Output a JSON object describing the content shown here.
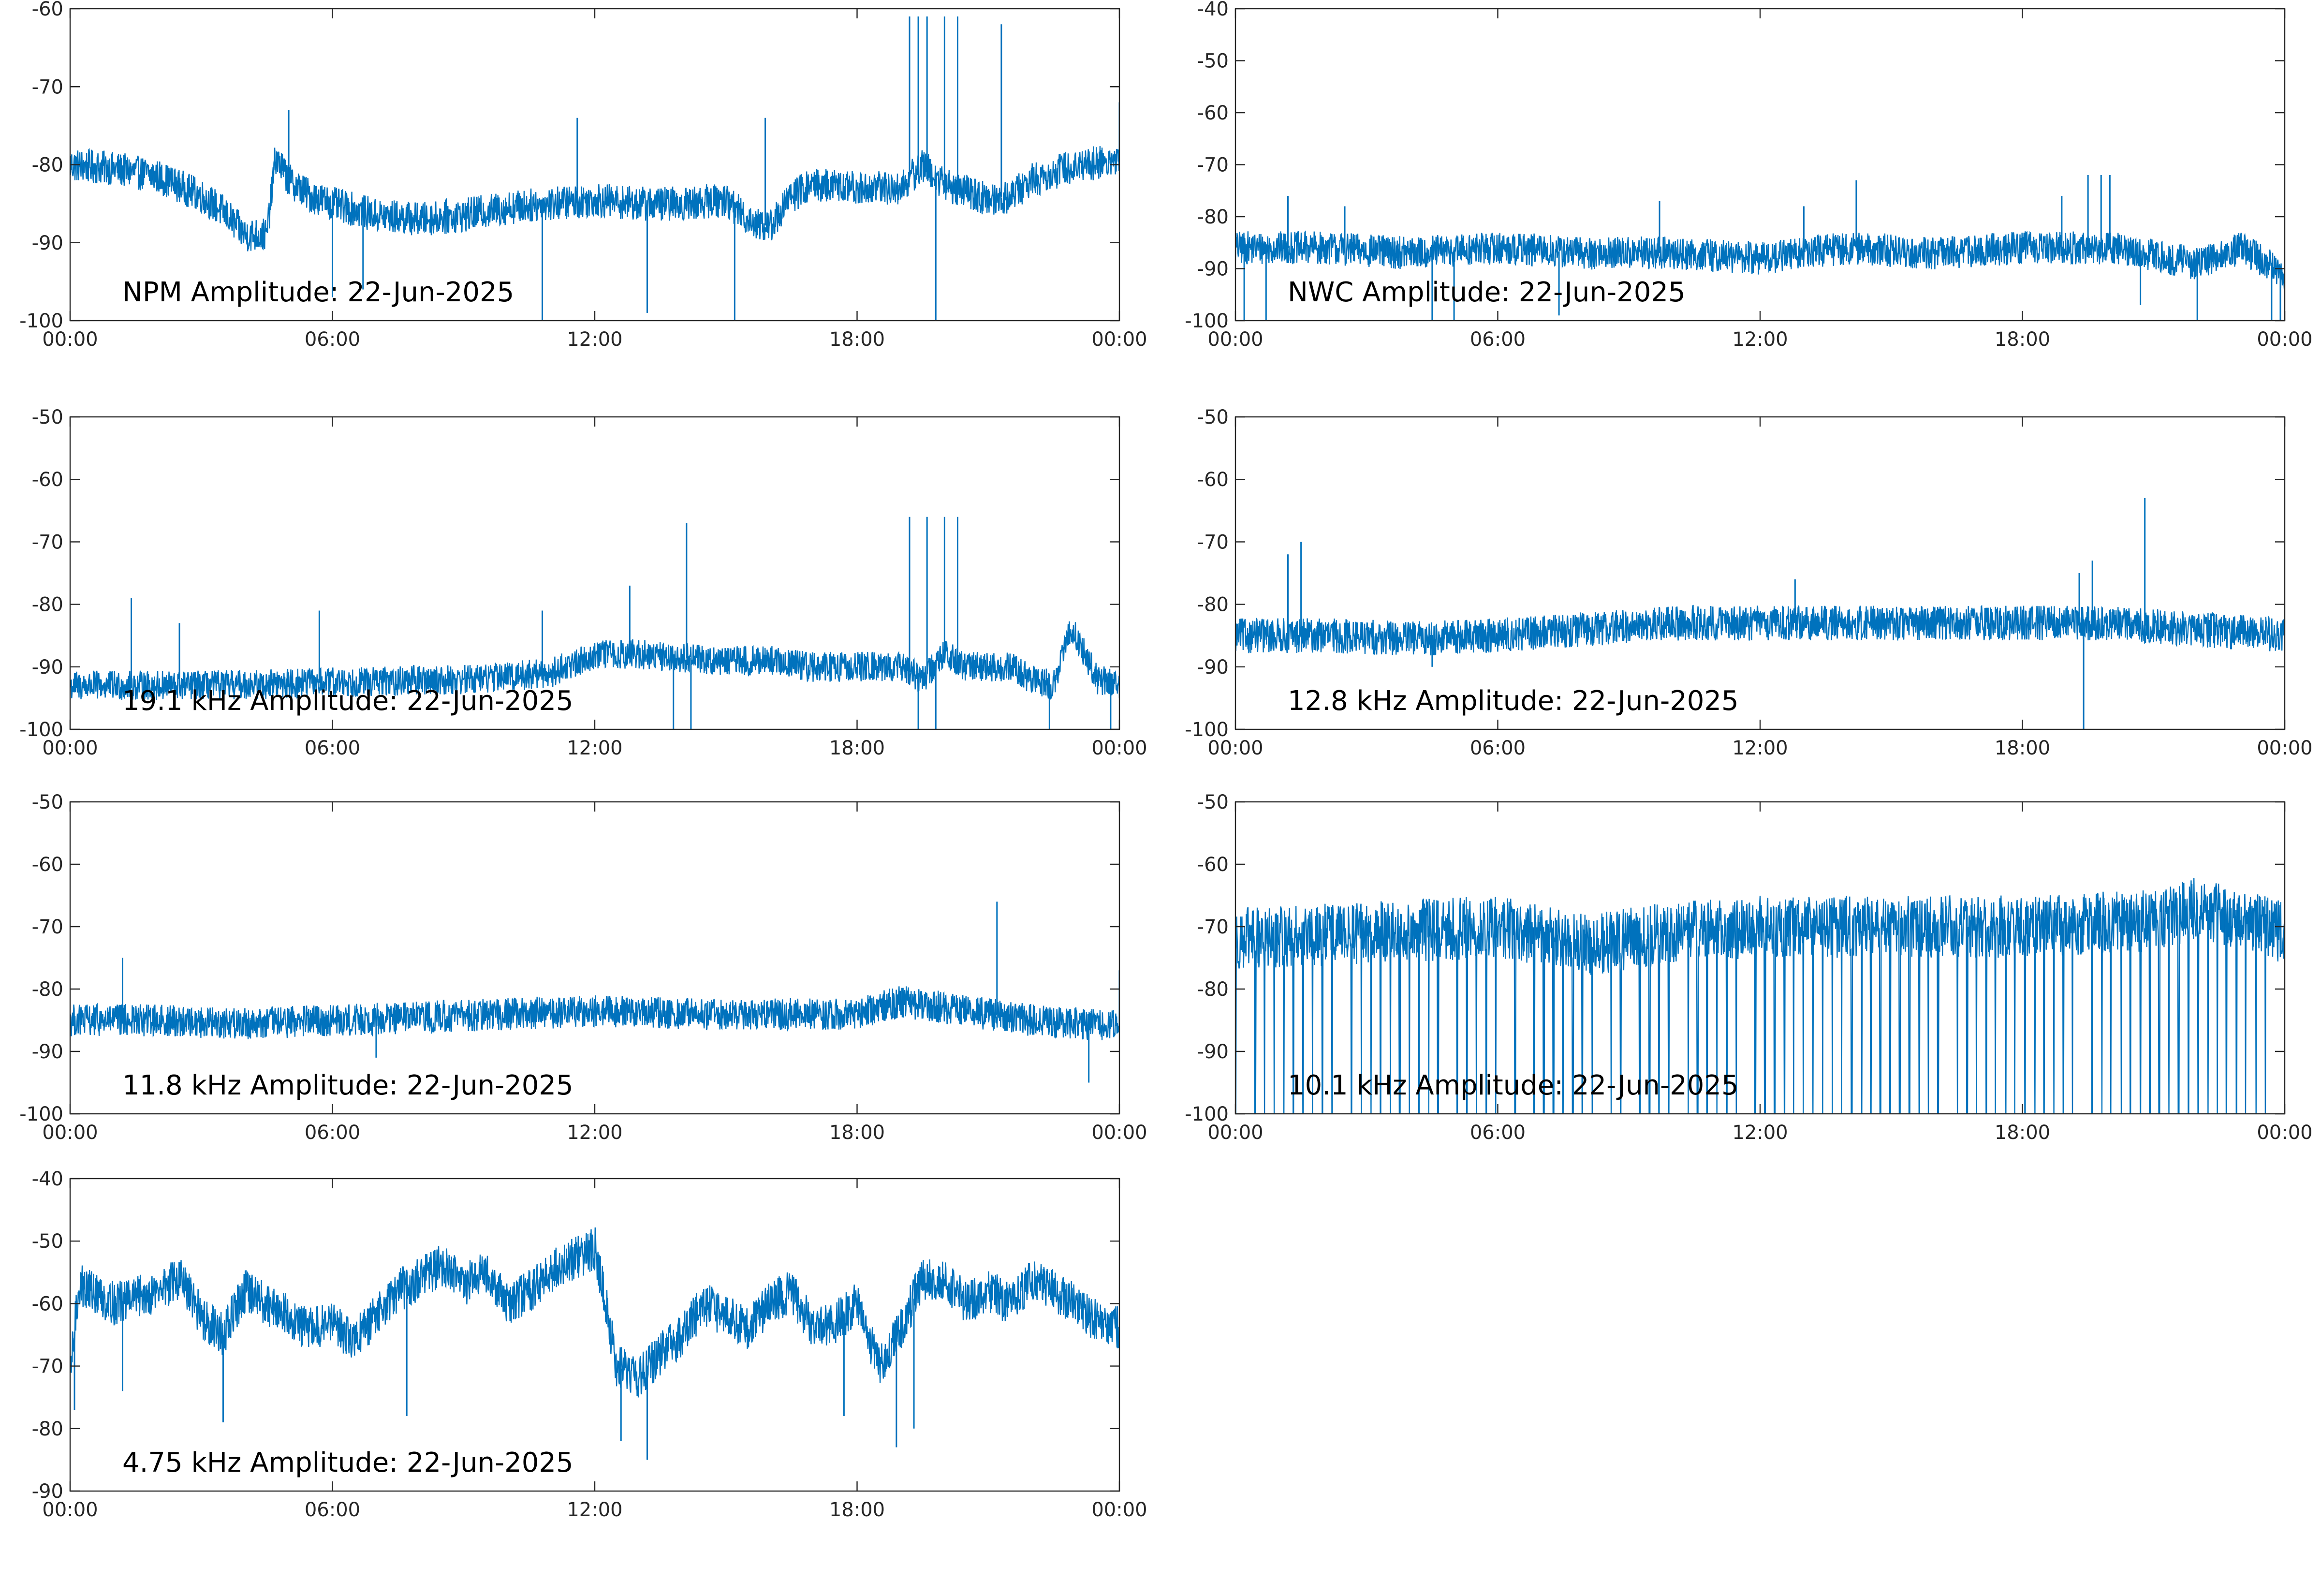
{
  "chart_data": [
    {
      "type": "line",
      "title": "NPM Amplitude: 22-Jun-2025",
      "xticks": [
        "00:00",
        "06:00",
        "12:00",
        "18:00",
        "00:00"
      ],
      "xlim": [
        0,
        24
      ],
      "ylim": [
        -100,
        -60
      ],
      "yticks": [
        -100,
        -90,
        -80,
        -70,
        -60
      ],
      "color": "#0072BD",
      "series": [
        {
          "x": [
            0,
            1,
            2,
            3,
            3.5,
            4,
            4.5,
            4.7,
            5,
            5.5,
            6,
            7,
            8,
            9,
            10,
            11,
            12,
            13,
            14,
            15,
            15.5,
            16,
            16.5,
            17,
            18,
            19,
            19.5,
            20,
            20.5,
            21,
            21.5,
            22,
            23,
            24
          ],
          "values": [
            -80,
            -80.5,
            -81.5,
            -84,
            -86,
            -89,
            -89,
            -79,
            -82,
            -84,
            -85,
            -86.5,
            -87,
            -86.5,
            -85.5,
            -85,
            -84.5,
            -85,
            -85,
            -84.5,
            -87,
            -88,
            -84,
            -82.5,
            -83,
            -83,
            -80,
            -82.5,
            -83.5,
            -84.5,
            -84,
            -82,
            -80,
            -79.5
          ],
          "noise": 2.2,
          "spikes": [
            {
              "x": 5.0,
              "y": -73
            },
            {
              "x": 6.0,
              "y": -97
            },
            {
              "x": 6.7,
              "y": -96
            },
            {
              "x": 10.8,
              "y": -100
            },
            {
              "x": 11.6,
              "y": -74
            },
            {
              "x": 13.2,
              "y": -99
            },
            {
              "x": 15.2,
              "y": -100
            },
            {
              "x": 15.9,
              "y": -74
            },
            {
              "x": 19.2,
              "y": -61
            },
            {
              "x": 19.4,
              "y": -61
            },
            {
              "x": 19.6,
              "y": -61
            },
            {
              "x": 19.8,
              "y": -100
            },
            {
              "x": 20.0,
              "y": -61
            },
            {
              "x": 20.3,
              "y": -61
            },
            {
              "x": 21.3,
              "y": -62
            },
            {
              "x": 24.0,
              "y": -72
            }
          ]
        }
      ]
    },
    {
      "type": "line",
      "title": "NWC Amplitude: 22-Jun-2025",
      "xticks": [
        "00:00",
        "06:00",
        "12:00",
        "18:00",
        "00:00"
      ],
      "xlim": [
        0,
        24
      ],
      "ylim": [
        -100,
        -40
      ],
      "yticks": [
        -100,
        -90,
        -80,
        -70,
        -60,
        -50,
        -40
      ],
      "color": "#0072BD",
      "series": [
        {
          "x": [
            0,
            2,
            4,
            6,
            8,
            10,
            12,
            14,
            16,
            18,
            20,
            22,
            23,
            24
          ],
          "values": [
            -86,
            -86,
            -87,
            -86,
            -87,
            -87,
            -88,
            -86,
            -87,
            -86,
            -86,
            -89,
            -86,
            -91
          ],
          "noise": 3.2,
          "spikes": [
            {
              "x": 0.2,
              "y": -100
            },
            {
              "x": 0.7,
              "y": -100
            },
            {
              "x": 1.2,
              "y": -76
            },
            {
              "x": 2.5,
              "y": -78
            },
            {
              "x": 4.5,
              "y": -100
            },
            {
              "x": 5.0,
              "y": -100
            },
            {
              "x": 7.4,
              "y": -99
            },
            {
              "x": 9.7,
              "y": -77
            },
            {
              "x": 13.0,
              "y": -78
            },
            {
              "x": 14.2,
              "y": -73
            },
            {
              "x": 18.9,
              "y": -76
            },
            {
              "x": 19.5,
              "y": -72
            },
            {
              "x": 19.8,
              "y": -72
            },
            {
              "x": 20.0,
              "y": -72
            },
            {
              "x": 20.7,
              "y": -97
            },
            {
              "x": 22.0,
              "y": -100
            },
            {
              "x": 23.7,
              "y": -100
            },
            {
              "x": 23.9,
              "y": -100
            }
          ]
        }
      ]
    },
    {
      "type": "line",
      "title": "19.1 kHz Amplitude: 22-Jun-2025",
      "xticks": [
        "00:00",
        "06:00",
        "12:00",
        "18:00",
        "00:00"
      ],
      "xlim": [
        0,
        24
      ],
      "ylim": [
        -100,
        -50
      ],
      "yticks": [
        -100,
        -90,
        -80,
        -70,
        -60,
        -50
      ],
      "color": "#0072BD",
      "series": [
        {
          "x": [
            0,
            3,
            6,
            9,
            11,
            12,
            13,
            14,
            15,
            16,
            17,
            18,
            19,
            19.5,
            20,
            20.5,
            21,
            21.5,
            22,
            22.5,
            22.8,
            23,
            23.5,
            24
          ],
          "values": [
            -93,
            -93,
            -92.5,
            -92,
            -91,
            -88,
            -88,
            -88.5,
            -89,
            -89,
            -90,
            -90,
            -90,
            -92,
            -88,
            -90,
            -90,
            -90,
            -92,
            -93,
            -85,
            -85,
            -92,
            -93
          ],
          "noise": 2.4,
          "spikes": [
            {
              "x": 1.4,
              "y": -79
            },
            {
              "x": 2.5,
              "y": -83
            },
            {
              "x": 5.7,
              "y": -81
            },
            {
              "x": 10.8,
              "y": -81
            },
            {
              "x": 12.8,
              "y": -77
            },
            {
              "x": 13.8,
              "y": -100
            },
            {
              "x": 14.1,
              "y": -67
            },
            {
              "x": 14.2,
              "y": -100
            },
            {
              "x": 19.2,
              "y": -66
            },
            {
              "x": 19.4,
              "y": -100
            },
            {
              "x": 19.6,
              "y": -66
            },
            {
              "x": 19.8,
              "y": -100
            },
            {
              "x": 20.0,
              "y": -66
            },
            {
              "x": 20.3,
              "y": -66
            },
            {
              "x": 22.4,
              "y": -100
            },
            {
              "x": 23.8,
              "y": -100
            }
          ]
        }
      ]
    },
    {
      "type": "line",
      "title": "12.8 kHz Amplitude: 22-Jun-2025",
      "xticks": [
        "00:00",
        "06:00",
        "12:00",
        "18:00",
        "00:00"
      ],
      "xlim": [
        0,
        24
      ],
      "ylim": [
        -100,
        -50
      ],
      "yticks": [
        -100,
        -90,
        -80,
        -70,
        -60,
        -50
      ],
      "color": "#0072BD",
      "series": [
        {
          "x": [
            0,
            2,
            4,
            6,
            8,
            10,
            12,
            14,
            16,
            18,
            20,
            22,
            24
          ],
          "values": [
            -85,
            -85,
            -85.5,
            -85,
            -84,
            -83,
            -83,
            -83,
            -83,
            -83,
            -83,
            -84,
            -85
          ],
          "noise": 2.8,
          "spikes": [
            {
              "x": 1.2,
              "y": -72
            },
            {
              "x": 1.5,
              "y": -70
            },
            {
              "x": 4.5,
              "y": -90
            },
            {
              "x": 12.8,
              "y": -76
            },
            {
              "x": 19.3,
              "y": -75
            },
            {
              "x": 19.4,
              "y": -100
            },
            {
              "x": 19.6,
              "y": -73
            },
            {
              "x": 20.8,
              "y": -63
            }
          ]
        }
      ]
    },
    {
      "type": "line",
      "title": "11.8 kHz Amplitude: 22-Jun-2025",
      "xticks": [
        "00:00",
        "06:00",
        "12:00",
        "18:00",
        "00:00"
      ],
      "xlim": [
        0,
        24
      ],
      "ylim": [
        -100,
        -50
      ],
      "yticks": [
        -100,
        -90,
        -80,
        -70,
        -60,
        -50
      ],
      "color": "#0072BD",
      "series": [
        {
          "x": [
            0,
            2,
            4,
            6,
            8,
            10,
            12,
            14,
            16,
            18,
            19,
            20,
            22,
            24
          ],
          "values": [
            -85,
            -85,
            -85.5,
            -85,
            -84.5,
            -84,
            -83.5,
            -84,
            -84,
            -84,
            -82,
            -83,
            -85,
            -86
          ],
          "noise": 2.6,
          "spikes": [
            {
              "x": 1.2,
              "y": -75
            },
            {
              "x": 7.0,
              "y": -91
            },
            {
              "x": 21.2,
              "y": -66
            },
            {
              "x": 23.3,
              "y": -95
            },
            {
              "x": 24.0,
              "y": -77
            }
          ]
        }
      ]
    },
    {
      "type": "line",
      "title": "10.1 kHz Amplitude: 22-Jun-2025",
      "xticks": [
        "00:00",
        "06:00",
        "12:00",
        "18:00",
        "00:00"
      ],
      "xlim": [
        0,
        24
      ],
      "ylim": [
        -100,
        -50
      ],
      "yticks": [
        -100,
        -90,
        -80,
        -70,
        -60,
        -50
      ],
      "color": "#0072BD",
      "series": [
        {
          "x": [
            0,
            3,
            6,
            8,
            10,
            12,
            15,
            18,
            21,
            22,
            24
          ],
          "values": [
            -72,
            -71,
            -70,
            -73,
            -71,
            -70,
            -70,
            -70,
            -69,
            -67,
            -71
          ],
          "noise": 5,
          "comb": {
            "period": 0.22,
            "floor": -100,
            "depth": 0.55
          },
          "spikes": []
        }
      ]
    },
    {
      "type": "line",
      "title": "4.75 kHz Amplitude: 22-Jun-2025",
      "xticks": [
        "00:00",
        "06:00",
        "12:00",
        "18:00",
        "00:00"
      ],
      "xlim": [
        0,
        24
      ],
      "ylim": [
        -90,
        -40
      ],
      "yticks": [
        -90,
        -80,
        -70,
        -60,
        -50,
        -40
      ],
      "color": "#0072BD",
      "series": [
        {
          "x": [
            0,
            0.2,
            0.5,
            1,
            2,
            2.5,
            3,
            3.5,
            4,
            4.5,
            5,
            5.5,
            6,
            6.5,
            7,
            7.5,
            8,
            8.5,
            9,
            9.5,
            10,
            10.5,
            11,
            11.5,
            12,
            12.2,
            12.5,
            13,
            13.5,
            14,
            14.5,
            15,
            15.5,
            16,
            16.5,
            17,
            17.5,
            18,
            18.5,
            19,
            19.5,
            20,
            20.5,
            21,
            21.5,
            22,
            22.5,
            23,
            23.5,
            24
          ],
          "values": [
            -72,
            -57,
            -58,
            -60,
            -58,
            -56,
            -62,
            -65,
            -58,
            -60,
            -62,
            -64,
            -63,
            -66,
            -62,
            -58,
            -56,
            -54,
            -57,
            -55,
            -60,
            -58,
            -55,
            -53,
            -51,
            -58,
            -70,
            -72,
            -68,
            -65,
            -60,
            -62,
            -64,
            -60,
            -58,
            -64,
            -63,
            -60,
            -70,
            -64,
            -56,
            -56,
            -60,
            -58,
            -60,
            -56,
            -58,
            -60,
            -63,
            -64
          ],
          "noise": 3.5,
          "spikes": [
            {
              "x": 0.1,
              "y": -77
            },
            {
              "x": 1.2,
              "y": -74
            },
            {
              "x": 3.5,
              "y": -79
            },
            {
              "x": 7.7,
              "y": -78
            },
            {
              "x": 12.6,
              "y": -82
            },
            {
              "x": 13.2,
              "y": -85
            },
            {
              "x": 17.7,
              "y": -78
            },
            {
              "x": 18.9,
              "y": -83
            },
            {
              "x": 19.3,
              "y": -80
            }
          ]
        }
      ]
    }
  ]
}
